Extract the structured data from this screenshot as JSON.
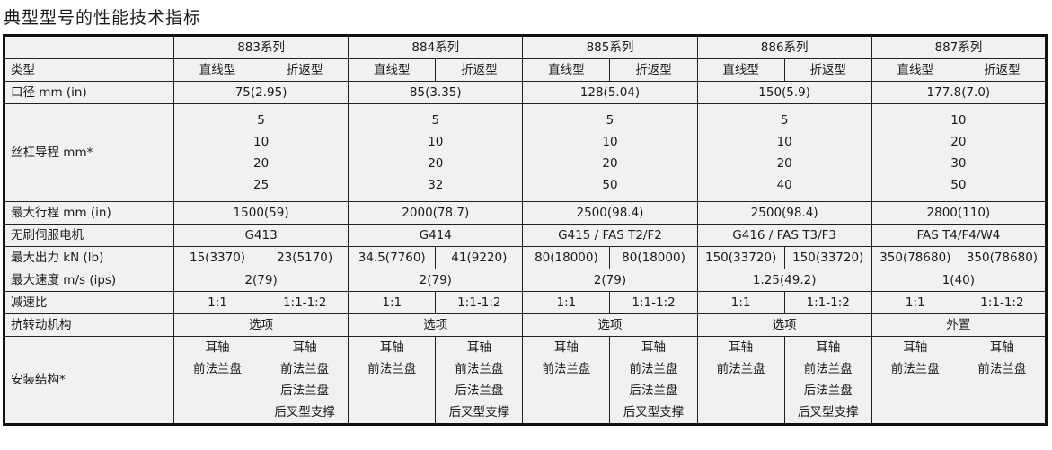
{
  "title": "典型型号的性能技术指标",
  "series": [
    "883系列",
    "884系列",
    "885系列",
    "886系列",
    "887系列"
  ],
  "rows": [
    {
      "label": "类型",
      "values": [
        [
          "直线型",
          "折返型"
        ],
        [
          "直线型",
          "折返型"
        ],
        [
          "直线型",
          "折返型"
        ],
        [
          "直线型",
          "折返型"
        ],
        [
          "直线型",
          "折返型"
        ]
      ]
    },
    {
      "label": "口径 mm (in)",
      "values": [
        "75(2.95)",
        "85(3.35)",
        "128(5.04)",
        "150(5.9)",
        "177.8(7.0)"
      ]
    },
    {
      "label": "丝杠导程 mm*",
      "cls": "lead",
      "values": [
        "5\n10\n20\n25",
        "5\n10\n20\n32",
        "5\n10\n20\n50",
        "5\n10\n20\n40",
        "10\n20\n30\n50"
      ]
    },
    {
      "label": "最大行程 mm (in)",
      "values": [
        "1500(59)",
        "2000(78.7)",
        "2500(98.4)",
        "2500(98.4)",
        "2800(110)"
      ]
    },
    {
      "label": "无刷伺服电机",
      "values": [
        "G413",
        "G414",
        "G415 / FAS T2/F2",
        "G416 / FAS T3/F3",
        "FAS T4/F4/W4"
      ]
    },
    {
      "label": "最大出力 kN (lb)",
      "values": [
        [
          "15(3370)",
          "23(5170)"
        ],
        [
          "34.5(7760)",
          "41(9220)"
        ],
        [
          "80(18000)",
          "80(18000)"
        ],
        [
          "150(33720)",
          "150(33720)"
        ],
        [
          "350(78680)",
          "350(78680)"
        ]
      ]
    },
    {
      "label": "最大速度 m/s (ips)",
      "values": [
        "2(79)",
        "2(79)",
        "2(79)",
        "1.25(49.2)",
        "1(40)"
      ]
    },
    {
      "label": "减速比",
      "values": [
        [
          "1:1",
          "1:1-1:2"
        ],
        [
          "1:1",
          "1:1-1:2"
        ],
        [
          "1:1",
          "1:1-1:2"
        ],
        [
          "1:1",
          "1:1-1:2"
        ],
        [
          "1:1",
          "1:1-1:2"
        ]
      ]
    },
    {
      "label": "抗转动机构",
      "values": [
        "选项",
        "选项",
        "选项",
        "选项",
        "外置"
      ]
    },
    {
      "label": "安装结构*",
      "cls": "mount",
      "values": [
        [
          "耳轴\n前法兰盘",
          "耳轴\n前法兰盘\n后法兰盘\n后叉型支撑"
        ],
        [
          "耳轴\n前法兰盘",
          "耳轴\n前法兰盘\n后法兰盘\n后叉型支撑"
        ],
        [
          "耳轴\n前法兰盘",
          "耳轴\n前法兰盘\n后法兰盘\n后叉型支撑"
        ],
        [
          "耳轴\n前法兰盘",
          "耳轴\n前法兰盘\n后法兰盘\n后叉型支撑"
        ],
        [
          "耳轴\n前法兰盘",
          "耳轴\n前法兰盘"
        ]
      ]
    }
  ]
}
